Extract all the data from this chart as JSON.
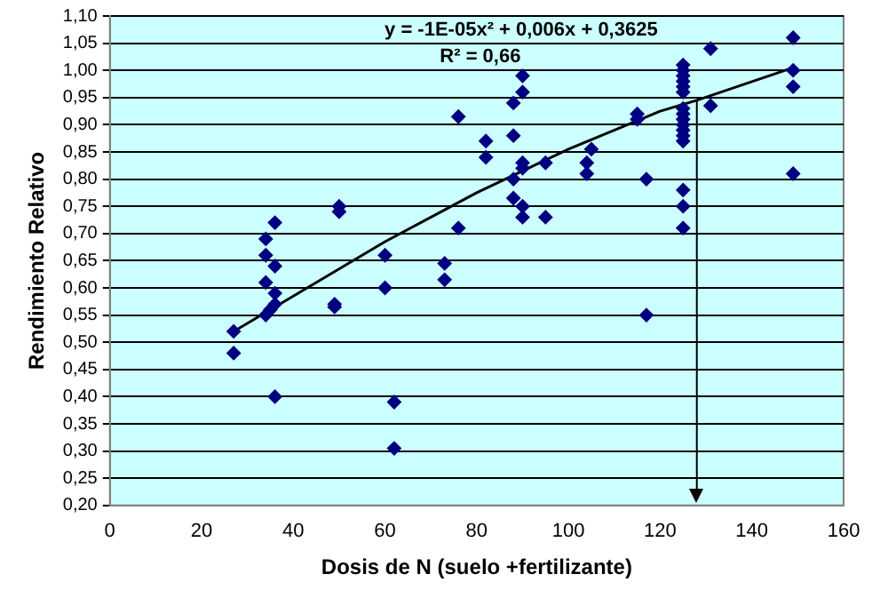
{
  "chart_data": {
    "type": "scatter",
    "xlabel": "Dosis de N (suelo +fertilizante)",
    "ylabel": "Rendimiento Relativo",
    "annotations": [
      "y = -1E-05x² + 0,006x + 0,3625",
      "R² = 0,66"
    ],
    "xlim": [
      0,
      160
    ],
    "xticks": [
      0,
      20,
      40,
      60,
      80,
      100,
      120,
      140,
      160
    ],
    "ylim": [
      0.2,
      1.1
    ],
    "yticks": [
      {
        "value": 0.2,
        "label": "0,20"
      },
      {
        "value": 0.25,
        "label": "0,25"
      },
      {
        "value": 0.3,
        "label": "0,30"
      },
      {
        "value": 0.35,
        "label": "0,35"
      },
      {
        "value": 0.4,
        "label": "0,40"
      },
      {
        "value": 0.45,
        "label": "0,45"
      },
      {
        "value": 0.5,
        "label": "0,50"
      },
      {
        "value": 0.55,
        "label": "0,55"
      },
      {
        "value": 0.6,
        "label": "0,60"
      },
      {
        "value": 0.65,
        "label": "0,65"
      },
      {
        "value": 0.7,
        "label": "0,70"
      },
      {
        "value": 0.75,
        "label": "0,75"
      },
      {
        "value": 0.8,
        "label": "0,80"
      },
      {
        "value": 0.85,
        "label": "0,85"
      },
      {
        "value": 0.9,
        "label": "0,90"
      },
      {
        "value": 0.95,
        "label": "0,95"
      },
      {
        "value": 1.0,
        "label": "1,00"
      },
      {
        "value": 1.05,
        "label": "1,05"
      },
      {
        "value": 1.1,
        "label": "1,10"
      }
    ],
    "grid": "y",
    "legend": false,
    "ref_lines": [
      {
        "axis": "x",
        "value": 128,
        "color": "#000000"
      }
    ],
    "series": [
      {
        "color": "#000080",
        "marker": "diamond",
        "x": [
          27,
          27,
          34,
          34,
          34,
          34,
          35,
          36,
          36,
          36,
          36,
          36,
          49,
          49,
          50,
          50,
          60,
          60,
          62,
          62,
          73,
          73,
          76,
          76,
          82,
          82,
          88,
          88,
          88,
          88,
          90,
          90,
          90,
          90,
          90,
          90,
          95,
          95,
          104,
          104,
          105,
          115,
          115,
          117,
          117,
          125,
          125,
          125,
          125,
          125,
          125,
          125,
          125,
          125,
          125,
          125,
          125,
          125,
          125,
          125,
          125,
          131,
          131,
          149,
          149,
          149,
          149
        ],
        "values": [
          0.52,
          0.48,
          0.69,
          0.66,
          0.61,
          0.55,
          0.56,
          0.72,
          0.64,
          0.59,
          0.57,
          0.4,
          0.57,
          0.565,
          0.75,
          0.74,
          0.66,
          0.6,
          0.39,
          0.305,
          0.645,
          0.615,
          0.915,
          0.71,
          0.87,
          0.84,
          0.94,
          0.88,
          0.8,
          0.765,
          0.99,
          0.96,
          0.83,
          0.82,
          0.75,
          0.73,
          0.83,
          0.73,
          0.83,
          0.81,
          0.855,
          0.92,
          0.91,
          0.8,
          0.55,
          1.01,
          1.0,
          0.99,
          0.98,
          0.97,
          0.96,
          0.93,
          0.92,
          0.91,
          0.9,
          0.89,
          0.88,
          0.87,
          0.78,
          0.75,
          0.71,
          1.04,
          0.935,
          1.06,
          1.0,
          0.97,
          0.81
        ]
      },
      {
        "type": "line",
        "color": "#000000",
        "marker": "none",
        "x": [
          27,
          40,
          60,
          80,
          100,
          120,
          128,
          149
        ],
        "values": [
          0.52,
          0.585,
          0.685,
          0.775,
          0.855,
          0.925,
          0.945,
          1.005
        ]
      }
    ]
  }
}
